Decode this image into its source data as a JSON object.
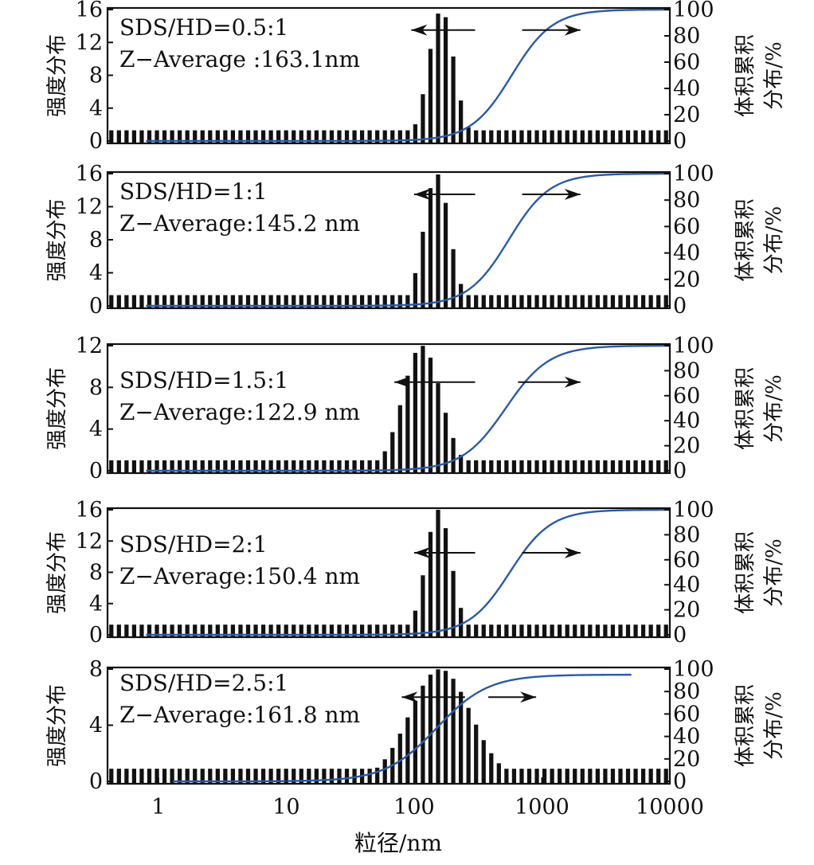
{
  "chart_data": {
    "type": "bar",
    "xlabel": "粒径/nm",
    "x_scale": "log",
    "xlim": [
      0.4,
      10000
    ],
    "x_ticks": [
      {
        "value": 1,
        "label": "1"
      },
      {
        "value": 10,
        "label": "10"
      },
      {
        "value": 100,
        "label": "100"
      },
      {
        "value": 1000,
        "label": "1000"
      },
      {
        "value": 10000,
        "label": "10000"
      }
    ],
    "colors": {
      "bars": "#111111",
      "cumulative": "#2b5aa8",
      "axes": "#111111"
    },
    "ylabel_left": "强度分布",
    "ylabel_right": [
      "体积累积",
      "分布/%"
    ],
    "right_ticks": [
      "0",
      "20",
      "40",
      "60",
      "80",
      "100"
    ],
    "right_ylim": [
      0,
      100
    ],
    "panels": [
      {
        "annotation": [
          "SDS/HD=0.5:1",
          "Z−Average :163.1nm"
        ],
        "ylim": [
          0,
          16
        ],
        "left_ticks": [
          "0",
          "4",
          "8",
          "12",
          "16"
        ],
        "peak": 163,
        "sigma": 0.1,
        "peak_value": 16,
        "baseline_value": 1.3,
        "bars_from": 0.4,
        "bars_to": 10000,
        "cumulative_x_start": 0.8,
        "cumulative_x_end": 10000,
        "cumulative_max": 100,
        "cumulative_center": 580,
        "cumulative_width": 0.16,
        "arrow_left_x": [
          95,
          300
        ],
        "arrow_right_x": [
          700,
          2000
        ],
        "arrow_y": 13.5
      },
      {
        "annotation": [
          "SDS/HD=1:1",
          "Z−Average:145.2 nm"
        ],
        "ylim": [
          0,
          16
        ],
        "left_ticks": [
          "0",
          "4",
          "8",
          "12",
          "16"
        ],
        "peak": 150,
        "sigma": 0.1,
        "peak_value": 16,
        "baseline_value": 1.3,
        "bars_from": 0.4,
        "bars_to": 10000,
        "cumulative_x_start": 0.8,
        "cumulative_x_end": 10000,
        "cumulative_max": 100,
        "cumulative_center": 550,
        "cumulative_width": 0.16,
        "arrow_left_x": [
          100,
          300
        ],
        "arrow_right_x": [
          700,
          2000
        ],
        "arrow_y": 13.5
      },
      {
        "annotation": [
          "SDS/HD=1.5:1",
          "Z−Average:122.9 nm"
        ],
        "ylim": [
          0,
          12
        ],
        "left_ticks": [
          "0",
          "4",
          "8",
          "12"
        ],
        "peak": 115,
        "sigma": 0.15,
        "peak_value": 12,
        "baseline_value": 1.0,
        "bars_from": 0.4,
        "bars_to": 10000,
        "cumulative_x_start": 0.8,
        "cumulative_x_end": 10000,
        "cumulative_max": 100,
        "cumulative_center": 520,
        "cumulative_width": 0.17,
        "arrow_left_x": [
          70,
          300
        ],
        "arrow_right_x": [
          650,
          2000
        ],
        "arrow_y": 8.5
      },
      {
        "annotation": [
          "SDS/HD=2:1",
          "Z−Average:150.4 nm"
        ],
        "ylim": [
          0,
          16
        ],
        "left_ticks": [
          "0",
          "4",
          "8",
          "12",
          "16"
        ],
        "peak": 155,
        "sigma": 0.1,
        "peak_value": 16,
        "baseline_value": 1.3,
        "bars_from": 0.4,
        "bars_to": 10000,
        "cumulative_x_start": 0.8,
        "cumulative_x_end": 10000,
        "cumulative_max": 100,
        "cumulative_center": 560,
        "cumulative_width": 0.16,
        "arrow_left_x": [
          100,
          300
        ],
        "arrow_right_x": [
          700,
          2000
        ],
        "arrow_y": 10.5
      },
      {
        "annotation": [
          "SDS/HD=2.5:1",
          "Z−Average:161.8 nm"
        ],
        "ylim": [
          0,
          8
        ],
        "left_ticks": [
          "0",
          "4",
          "8"
        ],
        "peak": 160,
        "sigma": 0.24,
        "peak_value": 8,
        "baseline_value": 0.9,
        "bars_from": 0.4,
        "bars_to": 10000,
        "cumulative_x_start": 1.3,
        "cumulative_x_end": 5000,
        "cumulative_max": 95,
        "cumulative_center": 150,
        "cumulative_width": 0.2,
        "arrow_left_x": [
          80,
          250
        ],
        "arrow_right_x": [
          380,
          900
        ],
        "arrow_y": 6
      }
    ]
  }
}
